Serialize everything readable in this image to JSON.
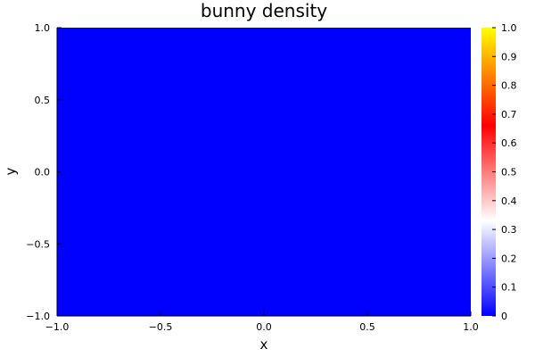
{
  "chart_data": {
    "type": "heatmap",
    "title": "bunny density",
    "xlabel": "x",
    "ylabel": "y",
    "xlim": [
      -1.0,
      1.0
    ],
    "ylim": [
      -1.0,
      1.0
    ],
    "xticks": [
      -1.0,
      -0.5,
      0.0,
      0.5,
      1.0
    ],
    "yticks": [
      -1.0,
      -0.5,
      0.0,
      0.5,
      1.0
    ],
    "xtick_labels": [
      "−1.0",
      "−0.5",
      "0.0",
      "0.5",
      "1.0"
    ],
    "ytick_labels": [
      "−1.0",
      "−0.5",
      "0.0",
      "0.5",
      "1.0"
    ],
    "grid": false,
    "z_values": [
      [
        0
      ]
    ],
    "colorbar": {
      "range": [
        0,
        1
      ],
      "ticks": [
        0,
        0.1,
        0.2,
        0.3,
        0.4,
        0.5,
        0.6,
        0.7,
        0.8,
        0.9,
        1.0
      ],
      "tick_labels": [
        "0",
        "0.1",
        "0.2",
        "0.3",
        "0.4",
        "0.5",
        "0.6",
        "0.7",
        "0.8",
        "0.9",
        "1.0"
      ],
      "colors": [
        "#0000ff",
        "#ffffff",
        "#ff0000",
        "#ffff00"
      ]
    }
  }
}
